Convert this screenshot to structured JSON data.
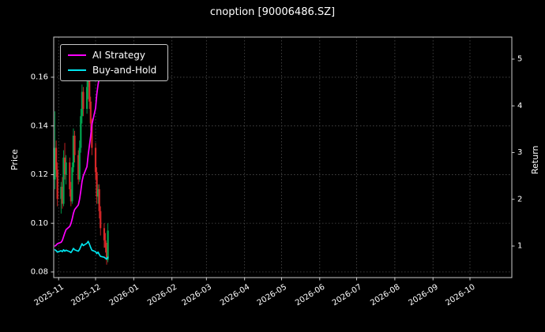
{
  "title": "cnoption [90006486.SZ]",
  "colors": {
    "background": "#000000",
    "text": "#ffffff",
    "grid": "#4d4d4d",
    "spine": "#cccccc",
    "candle_up": "#00a650",
    "candle_down": "#d62728"
  },
  "legend": {
    "items": [
      {
        "label": "AI Strategy",
        "color": "#ff00ff"
      },
      {
        "label": "Buy-and-Hold",
        "color": "#00e5ee"
      }
    ]
  },
  "chart_data": {
    "type": "candlestick+line",
    "title": "cnoption [90006486.SZ]",
    "ylabel_left": "Price",
    "ylabel_right": "Return",
    "grid": "dotted",
    "legend_position": "upper-left",
    "x_unit": "days since 2025-10-28",
    "x_domain": [
      0,
      372
    ],
    "x_ticks": [
      {
        "day": 4,
        "label": "2025-11"
      },
      {
        "day": 34,
        "label": "2025-12"
      },
      {
        "day": 65,
        "label": "2026-01"
      },
      {
        "day": 96,
        "label": "2026-02"
      },
      {
        "day": 124,
        "label": "2026-03"
      },
      {
        "day": 155,
        "label": "2026-04"
      },
      {
        "day": 185,
        "label": "2026-05"
      },
      {
        "day": 216,
        "label": "2026-06"
      },
      {
        "day": 246,
        "label": "2026-07"
      },
      {
        "day": 277,
        "label": "2026-08"
      },
      {
        "day": 308,
        "label": "2026-09"
      },
      {
        "day": 338,
        "label": "2026-10"
      }
    ],
    "price_axis": {
      "min": 0.0777,
      "max": 0.1765,
      "ticks": [
        {
          "v": 0.08,
          "label": "0.08"
        },
        {
          "v": 0.1,
          "label": "0.10"
        },
        {
          "v": 0.12,
          "label": "0.12"
        },
        {
          "v": 0.14,
          "label": "0.14"
        },
        {
          "v": 0.16,
          "label": "0.16"
        }
      ]
    },
    "return_axis": {
      "min": 0.325,
      "max": 5.472,
      "ticks": [
        {
          "v": 1,
          "label": "1"
        },
        {
          "v": 2,
          "label": "2"
        },
        {
          "v": 3,
          "label": "3"
        },
        {
          "v": 4,
          "label": "4"
        },
        {
          "v": 5,
          "label": "5"
        }
      ]
    },
    "candles": [
      [
        1,
        0.118,
        0.146,
        0.114,
        0.131
      ],
      [
        2,
        0.131,
        0.134,
        0.119,
        0.122
      ],
      [
        3,
        0.122,
        0.125,
        0.107,
        0.11
      ],
      [
        6,
        0.11,
        0.117,
        0.104,
        0.115
      ],
      [
        7,
        0.115,
        0.119,
        0.106,
        0.108
      ],
      [
        8,
        0.108,
        0.13,
        0.107,
        0.127
      ],
      [
        9,
        0.127,
        0.133,
        0.118,
        0.12
      ],
      [
        10,
        0.12,
        0.128,
        0.116,
        0.125
      ],
      [
        13,
        0.125,
        0.127,
        0.111,
        0.114
      ],
      [
        14,
        0.114,
        0.117,
        0.107,
        0.109
      ],
      [
        15,
        0.109,
        0.125,
        0.108,
        0.123
      ],
      [
        16,
        0.123,
        0.139,
        0.121,
        0.136
      ],
      [
        17,
        0.136,
        0.138,
        0.125,
        0.128
      ],
      [
        20,
        0.128,
        0.13,
        0.116,
        0.118
      ],
      [
        21,
        0.118,
        0.134,
        0.117,
        0.131
      ],
      [
        22,
        0.131,
        0.147,
        0.129,
        0.144
      ],
      [
        23,
        0.144,
        0.157,
        0.141,
        0.154
      ],
      [
        24,
        0.154,
        0.156,
        0.144,
        0.147
      ],
      [
        27,
        0.147,
        0.159,
        0.145,
        0.156
      ],
      [
        28,
        0.156,
        0.162,
        0.151,
        0.159
      ],
      [
        29,
        0.159,
        0.161,
        0.147,
        0.15
      ],
      [
        30,
        0.15,
        0.152,
        0.138,
        0.141
      ],
      [
        31,
        0.141,
        0.143,
        0.128,
        0.131
      ],
      [
        34,
        0.131,
        0.133,
        0.118,
        0.121
      ],
      [
        35,
        0.121,
        0.123,
        0.108,
        0.111
      ],
      [
        36,
        0.111,
        0.116,
        0.108,
        0.114
      ],
      [
        37,
        0.114,
        0.116,
        0.102,
        0.105
      ],
      [
        38,
        0.105,
        0.107,
        0.095,
        0.098
      ],
      [
        41,
        0.098,
        0.1,
        0.09,
        0.093
      ],
      [
        42,
        0.093,
        0.096,
        0.088,
        0.09
      ],
      [
        43,
        0.09,
        0.092,
        0.083,
        0.085
      ],
      [
        44,
        0.085,
        0.1,
        0.084,
        0.097
      ]
    ],
    "series": [
      {
        "name": "AI Strategy",
        "axis": "return",
        "color": "#ff00ff",
        "x": [
          1,
          2,
          3,
          6,
          7,
          8,
          9,
          10,
          13,
          14,
          15,
          16,
          17,
          20,
          21,
          22,
          23,
          24,
          27,
          28,
          29,
          30,
          31,
          34,
          35,
          36,
          37,
          38,
          41,
          42,
          43,
          44
        ],
        "y": [
          1.0,
          1.02,
          1.05,
          1.08,
          1.12,
          1.2,
          1.28,
          1.35,
          1.42,
          1.48,
          1.58,
          1.7,
          1.78,
          1.88,
          2.0,
          2.18,
          2.38,
          2.5,
          2.7,
          2.95,
          3.15,
          3.35,
          3.6,
          3.95,
          4.25,
          4.45,
          4.6,
          4.7,
          4.78,
          4.82,
          4.86,
          4.9
        ]
      },
      {
        "name": "Buy-and-Hold",
        "axis": "return",
        "color": "#00e5ee",
        "x": [
          1,
          2,
          3,
          6,
          7,
          8,
          9,
          10,
          13,
          14,
          15,
          16,
          17,
          20,
          21,
          22,
          23,
          24,
          27,
          28,
          29,
          30,
          31,
          34,
          35,
          36,
          37,
          38,
          41,
          42,
          43,
          44
        ],
        "y": [
          0.92,
          0.9,
          0.87,
          0.9,
          0.88,
          0.92,
          0.89,
          0.91,
          0.88,
          0.86,
          0.9,
          0.95,
          0.92,
          0.89,
          0.93,
          0.99,
          1.05,
          1.01,
          1.06,
          1.1,
          1.04,
          0.97,
          0.91,
          0.88,
          0.84,
          0.87,
          0.82,
          0.78,
          0.76,
          0.74,
          0.72,
          0.76
        ]
      }
    ]
  }
}
